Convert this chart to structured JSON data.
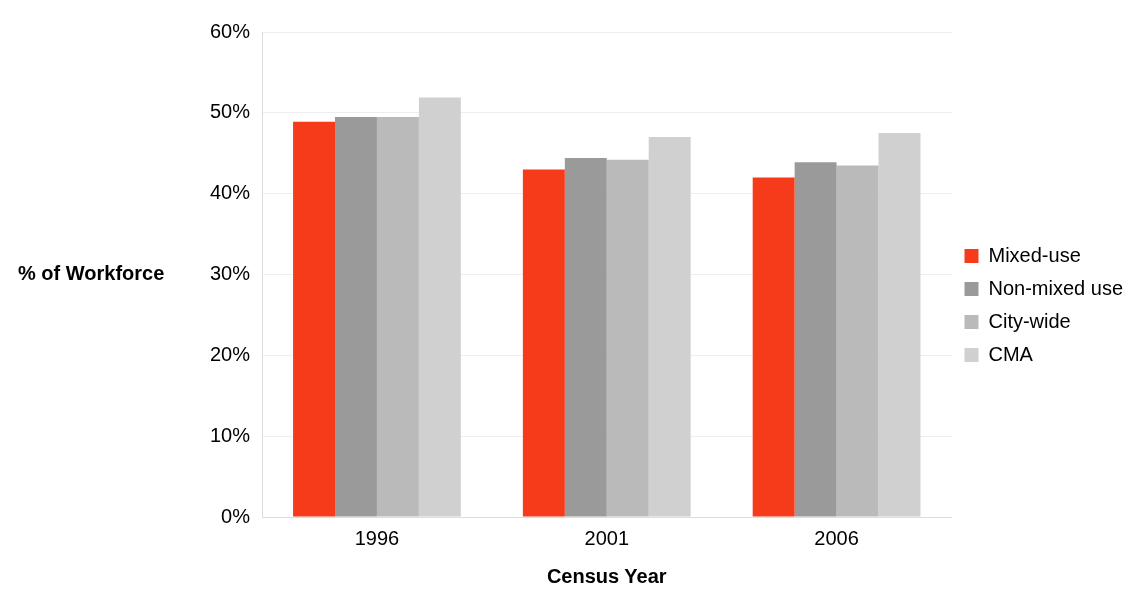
{
  "chart_data": {
    "type": "bar",
    "xlabel": "Census Year",
    "ylabel": "% of Workforce",
    "categories": [
      "1996",
      "2001",
      "2006"
    ],
    "series": [
      {
        "name": "Mixed-use",
        "color": "#f53b1a",
        "values": [
          48.9,
          43.0,
          42.0
        ]
      },
      {
        "name": "Non-mixed use",
        "color": "#9a9a9a",
        "values": [
          49.5,
          44.4,
          43.9
        ]
      },
      {
        "name": "City-wide",
        "color": "#bababa",
        "values": [
          49.5,
          44.2,
          43.5
        ]
      },
      {
        "name": "CMA",
        "color": "#d0d0d0",
        "values": [
          51.9,
          47.0,
          47.5
        ]
      }
    ],
    "ylim": [
      0,
      60
    ],
    "yticks": [
      {
        "value": 0,
        "label": "0%"
      },
      {
        "value": 10,
        "label": "10%"
      },
      {
        "value": 20,
        "label": "20%"
      },
      {
        "value": 30,
        "label": "30%"
      },
      {
        "value": 40,
        "label": "40%"
      },
      {
        "value": 50,
        "label": "50%"
      },
      {
        "value": 60,
        "label": "60%"
      }
    ],
    "grid": "y",
    "legend": "right"
  }
}
